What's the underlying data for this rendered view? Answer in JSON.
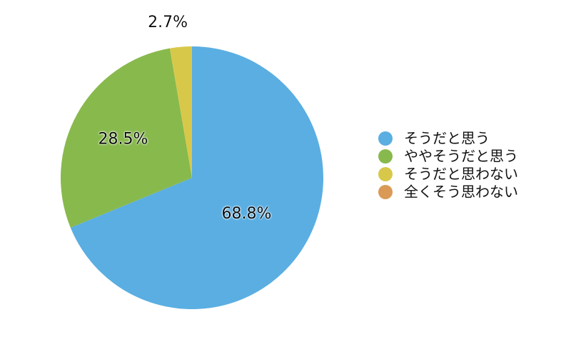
{
  "chart_data": {
    "type": "pie",
    "categories": [
      "そうだと思う",
      "ややそうだと思う",
      "そうだと思わない",
      "全くそう思わない"
    ],
    "values": [
      68.8,
      28.5,
      2.7,
      0
    ],
    "value_labels": [
      "68.8%",
      "28.5%",
      "2.7%",
      ""
    ],
    "colors": [
      "#5aaee2",
      "#88b94d",
      "#d8c84a",
      "#da9a55"
    ],
    "start_angle_deg": 0,
    "direction": "clockwise",
    "legend_position": "right",
    "title": ""
  }
}
